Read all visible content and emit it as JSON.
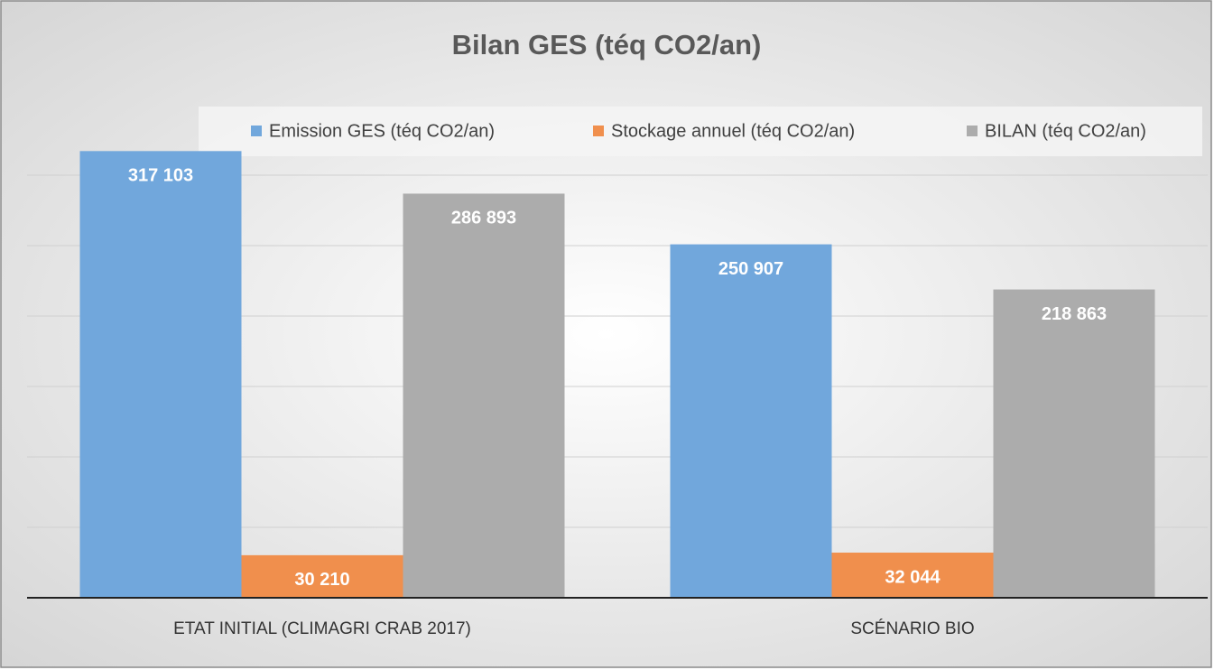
{
  "chart_data": {
    "type": "bar",
    "title": "Bilan GES (téq CO2/an)",
    "categories": [
      "ETAT INITIAL (CLIMAGRI CRAB 2017)",
      "SCÉNARIO BIO"
    ],
    "series": [
      {
        "name": "Emission GES (téq CO2/an)",
        "color": "#71a7dc",
        "values": [
          317103,
          250907
        ],
        "value_labels": [
          "317 103",
          "250 907"
        ]
      },
      {
        "name": "Stockage annuel (téq CO2/an)",
        "color": "#f08f4d",
        "values": [
          30210,
          32044
        ],
        "value_labels": [
          "30 210",
          "32 044"
        ]
      },
      {
        "name": "BILAN (téq CO2/an)",
        "color": "#acacac",
        "values": [
          286893,
          218863
        ],
        "value_labels": [
          "286 893",
          "218 863"
        ]
      }
    ],
    "ylim": [
      0,
      350000
    ],
    "yticks": [
      0,
      50000,
      100000,
      150000,
      200000,
      250000,
      300000
    ],
    "grid": true,
    "legend": "top"
  }
}
